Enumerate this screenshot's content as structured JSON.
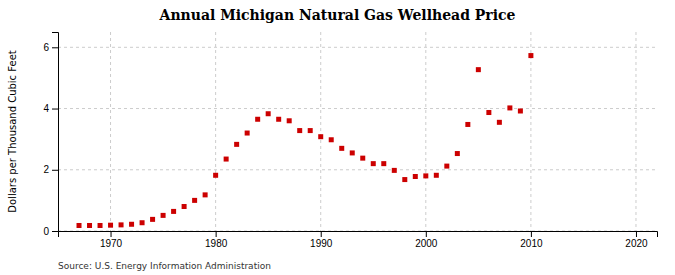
{
  "chart_data": {
    "type": "scatter",
    "title": "Annual Michigan Natural Gas Wellhead Price",
    "ylabel": "Dollars per Thousand Cubic Feet",
    "source": "Source: U.S. Energy Information Administration",
    "color": "#cc0000",
    "marker": "square",
    "grid": true,
    "xlim": [
      1965,
      2022
    ],
    "ylim": [
      0,
      6.5
    ],
    "xticks": [
      1970,
      1980,
      1990,
      2000,
      2010,
      2020
    ],
    "yticks": [
      0,
      2,
      4,
      6
    ],
    "x": [
      1967,
      1968,
      1969,
      1970,
      1971,
      1972,
      1973,
      1974,
      1975,
      1976,
      1977,
      1978,
      1979,
      1980,
      1981,
      1982,
      1983,
      1984,
      1985,
      1986,
      1987,
      1988,
      1989,
      1990,
      1991,
      1992,
      1993,
      1994,
      1995,
      1996,
      1997,
      1998,
      1999,
      2000,
      2001,
      2002,
      2003,
      2004,
      2005,
      2006,
      2007,
      2008,
      2009,
      2010
    ],
    "values": [
      0.18,
      0.18,
      0.18,
      0.19,
      0.2,
      0.22,
      0.27,
      0.38,
      0.51,
      0.64,
      0.8,
      1.0,
      1.18,
      1.82,
      2.35,
      2.83,
      3.2,
      3.65,
      3.83,
      3.65,
      3.6,
      3.28,
      3.28,
      3.08,
      2.98,
      2.7,
      2.55,
      2.38,
      2.2,
      2.2,
      1.98,
      1.68,
      1.78,
      1.8,
      1.82,
      2.12,
      2.53,
      3.48,
      5.27,
      3.87,
      3.55,
      4.02,
      3.92,
      5.73
    ]
  }
}
